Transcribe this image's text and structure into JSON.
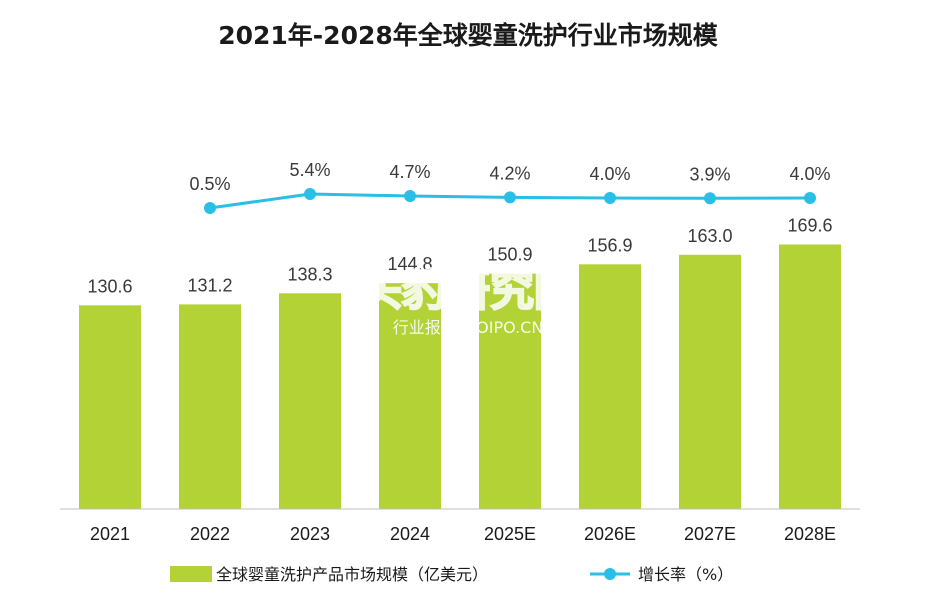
{
  "watermark": {
    "main": "头豹研究院",
    "sub": "行业报告 IPOIPO.CN"
  },
  "colors": {
    "bar": "#b2d235",
    "line": "#29bfe6",
    "axis": "#bfbfbf"
  },
  "chart_data": {
    "type": "bar",
    "title": "2021年-2028年全球婴童洗护行业市场规模",
    "categories": [
      "2021",
      "2022",
      "2023",
      "2024",
      "2025E",
      "2026E",
      "2027E",
      "2028E"
    ],
    "series": [
      {
        "name": "全球婴童洗护产品市场规模（亿美元）",
        "type": "bar",
        "values": [
          130.6,
          131.2,
          138.3,
          144.8,
          150.9,
          156.9,
          163.0,
          169.6
        ],
        "labels": [
          "130.6",
          "131.2",
          "138.3",
          "144.8",
          "150.9",
          "156.9",
          "163.0",
          "169.6"
        ]
      },
      {
        "name": "增长率（%）",
        "type": "line",
        "values": [
          null,
          0.5,
          5.4,
          4.7,
          4.2,
          4.0,
          3.9,
          4.0
        ],
        "labels": [
          "",
          "0.5%",
          "5.4%",
          "4.7%",
          "4.2%",
          "4.0%",
          "3.9%",
          "4.0%"
        ]
      }
    ],
    "bar_ylim": [
      0,
      200
    ],
    "line_ylim": [
      -30,
      6
    ],
    "legend": "bottom"
  }
}
